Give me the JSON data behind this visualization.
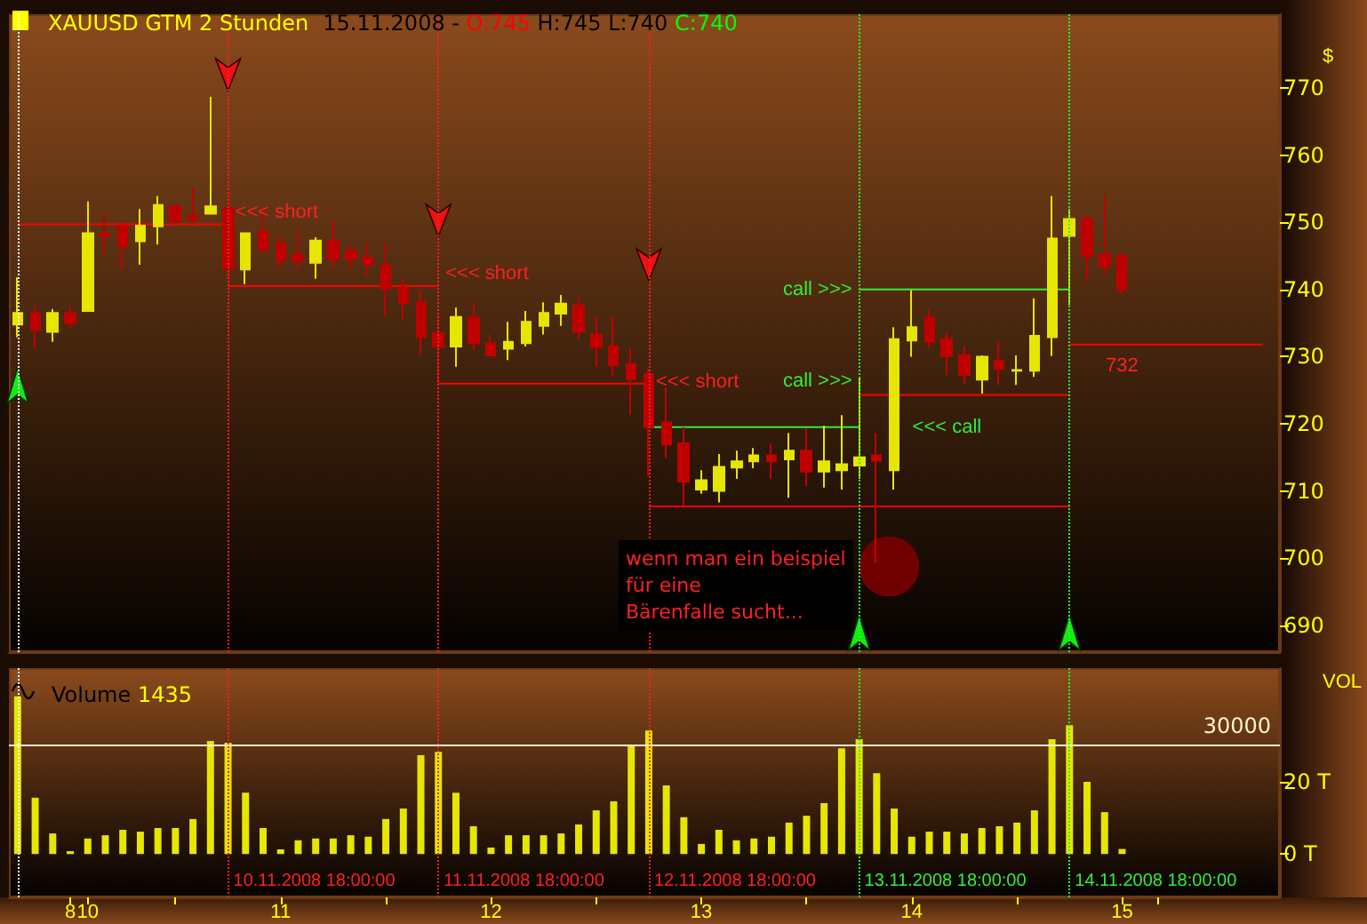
{
  "chart_data": [
    {
      "type": "candlestick",
      "title": "XAUUSD GTM 2 Stunden",
      "subtitle": "15.11.2008 - O:745 H:745 L:740 C:740",
      "ylabel": "$",
      "tick_labels": "y",
      "marker": "none",
      "xlim": [
        "2008-11-09T17:00",
        "2008-11-15T18:00"
      ],
      "ylim": [
        686,
        781
      ],
      "yticks": [
        690,
        700,
        710,
        720,
        730,
        740,
        750,
        760,
        770
      ],
      "x": [
        "2008-11-09T18:00",
        "2008-11-09T20:00",
        "2008-11-09T22:00",
        "2008-11-10T00:00",
        "2008-11-10T02:00",
        "2008-11-10T04:00",
        "2008-11-10T06:00",
        "2008-11-10T08:00",
        "2008-11-10T10:00",
        "2008-11-10T12:00",
        "2008-11-10T14:00",
        "2008-11-10T16:00",
        "2008-11-10T18:00",
        "2008-11-10T20:00",
        "2008-11-10T22:00",
        "2008-11-11T00:00",
        "2008-11-11T02:00",
        "2008-11-11T04:00",
        "2008-11-11T06:00",
        "2008-11-11T08:00",
        "2008-11-11T10:00",
        "2008-11-11T12:00",
        "2008-11-11T14:00",
        "2008-11-11T16:00",
        "2008-11-11T18:00",
        "2008-11-11T20:00",
        "2008-11-11T22:00",
        "2008-11-12T00:00",
        "2008-11-12T02:00",
        "2008-11-12T04:00",
        "2008-11-12T06:00",
        "2008-11-12T08:00",
        "2008-11-12T10:00",
        "2008-11-12T12:00",
        "2008-11-12T14:00",
        "2008-11-12T16:00",
        "2008-11-12T18:00",
        "2008-11-12T20:00",
        "2008-11-12T22:00",
        "2008-11-13T00:00",
        "2008-11-13T02:00",
        "2008-11-13T04:00",
        "2008-11-13T06:00",
        "2008-11-13T08:00",
        "2008-11-13T10:00",
        "2008-11-13T12:00",
        "2008-11-13T14:00",
        "2008-11-13T16:00",
        "2008-11-13T18:00",
        "2008-11-13T20:00",
        "2008-11-13T22:00",
        "2008-11-14T00:00",
        "2008-11-14T02:00",
        "2008-11-14T04:00",
        "2008-11-14T06:00",
        "2008-11-14T08:00",
        "2008-11-14T10:00",
        "2008-11-14T12:00",
        "2008-11-14T14:00",
        "2008-11-14T16:00",
        "2008-11-14T18:00",
        "2008-11-14T20:00",
        "2008-11-14T22:00",
        "2008-11-15T00:00"
      ],
      "ohlc": [
        [
          734.8,
          741.8,
          732.9,
          736.5
        ],
        [
          736.5,
          737.7,
          731.1,
          734.0
        ],
        [
          733.7,
          737.1,
          732.2,
          736.5
        ],
        [
          736.5,
          737.5,
          734.2,
          735.0
        ],
        [
          736.8,
          753.1,
          736.8,
          748.4
        ],
        [
          748.4,
          751.3,
          745.2,
          748.0
        ],
        [
          749.5,
          750.0,
          743.0,
          746.4
        ],
        [
          747.2,
          752.0,
          743.7,
          749.5
        ],
        [
          749.4,
          753.9,
          746.7,
          752.6
        ],
        [
          752.4,
          752.6,
          749.7,
          750.2
        ],
        [
          751.0,
          755.2,
          749.7,
          750.5
        ],
        [
          751.3,
          768.7,
          751.3,
          752.4
        ],
        [
          752.1,
          754.8,
          740.8,
          743.1
        ],
        [
          743.0,
          748.4,
          740.8,
          748.4
        ],
        [
          748.7,
          752.0,
          745.3,
          746.0
        ],
        [
          746.9,
          748.0,
          743.0,
          744.3
        ],
        [
          745.2,
          748.7,
          743.0,
          744.3
        ],
        [
          744.0,
          747.8,
          741.6,
          747.3
        ],
        [
          747.3,
          750.4,
          743.2,
          744.5
        ],
        [
          745.8,
          746.7,
          743.0,
          744.5
        ],
        [
          744.8,
          746.9,
          742.1,
          743.7
        ],
        [
          743.7,
          746.9,
          736.2,
          740.1
        ],
        [
          740.3,
          741.6,
          735.5,
          738.0
        ],
        [
          738.1,
          739.9,
          730.2,
          732.9
        ],
        [
          733.5,
          736.4,
          726.0,
          731.5
        ],
        [
          731.5,
          737.3,
          728.5,
          735.9
        ],
        [
          735.8,
          738.1,
          731.1,
          732.0
        ],
        [
          732.0,
          733.3,
          730.1,
          730.2
        ],
        [
          731.2,
          735.2,
          729.5,
          732.2
        ],
        [
          732.0,
          736.8,
          731.5,
          735.2
        ],
        [
          734.6,
          738.1,
          733.3,
          736.5
        ],
        [
          736.4,
          739.2,
          734.6,
          737.9
        ],
        [
          737.6,
          739.0,
          732.7,
          733.7
        ],
        [
          733.3,
          736.1,
          728.5,
          731.4
        ],
        [
          731.5,
          736.1,
          727.2,
          728.7
        ],
        [
          728.9,
          731.3,
          721.4,
          726.7
        ],
        [
          727.4,
          728.3,
          712.2,
          719.5
        ],
        [
          720.2,
          725.4,
          714.9,
          716.9
        ],
        [
          717.1,
          719.5,
          707.8,
          711.4
        ],
        [
          710.2,
          713.1,
          709.6,
          711.6
        ],
        [
          710.0,
          715.5,
          708.3,
          713.6
        ],
        [
          713.5,
          716.0,
          711.8,
          714.4
        ],
        [
          714.4,
          716.4,
          713.4,
          715.3
        ],
        [
          715.3,
          717.1,
          711.8,
          714.4
        ],
        [
          714.7,
          718.6,
          709.0,
          716.0
        ],
        [
          716.0,
          719.3,
          710.7,
          712.9
        ],
        [
          712.9,
          719.7,
          710.5,
          714.4
        ],
        [
          713.1,
          721.3,
          710.2,
          714.0
        ],
        [
          713.8,
          726.9,
          711.8,
          715.0
        ],
        [
          715.3,
          718.6,
          699.3,
          714.5
        ],
        [
          713.1,
          734.4,
          710.2,
          732.6
        ],
        [
          732.4,
          739.9,
          730.0,
          734.4
        ],
        [
          735.8,
          737.1,
          731.3,
          732.2
        ],
        [
          732.6,
          733.5,
          727.2,
          730.1
        ],
        [
          730.2,
          731.5,
          726.0,
          727.3
        ],
        [
          726.6,
          730.2,
          724.5,
          730.0
        ],
        [
          729.4,
          732.2,
          725.8,
          728.2
        ],
        [
          727.9,
          730.2,
          725.8,
          728.0
        ],
        [
          727.9,
          738.7,
          727.0,
          733.1
        ],
        [
          732.9,
          753.9,
          730.1,
          747.6
        ],
        [
          748.0,
          752.0,
          737.7,
          750.5
        ],
        [
          750.5,
          751.0,
          741.4,
          745.0
        ],
        [
          745.2,
          754.2,
          742.3,
          743.4
        ],
        [
          745,
          745.3,
          739.4,
          740
        ]
      ],
      "colors": [
        "#e6e600",
        "#c00000",
        "#e6e600",
        "#c00000",
        "#e6e600",
        "#c00000",
        "#c00000",
        "#e6e600",
        "#e6e600",
        "#c00000",
        "#c00000",
        "#e6e600",
        "#c00000",
        "#e6e600",
        "#c00000",
        "#c00000",
        "#c00000",
        "#e6e600",
        "#c00000",
        "#c00000",
        "#c00000",
        "#c00000",
        "#c00000",
        "#c00000",
        "#c00000",
        "#e6e600",
        "#c00000",
        "#c00000",
        "#e6e600",
        "#e6e600",
        "#e6e600",
        "#e6e600",
        "#c00000",
        "#c00000",
        "#c00000",
        "#c00000",
        "#c00000",
        "#c00000",
        "#c00000",
        "#e6e600",
        "#e6e600",
        "#e6e600",
        "#e6e600",
        "#c00000",
        "#e6e600",
        "#c00000",
        "#e6e600",
        "#e6e600",
        "#e6e600",
        "#c00000",
        "#e6e600",
        "#e6e600",
        "#c00000",
        "#c00000",
        "#c00000",
        "#e6e600",
        "#c00000",
        "#e6e600",
        "#e6e600",
        "#e6e600",
        "#e6e600",
        "#c00000",
        "#c00000",
        "#c00000"
      ],
      "series": [
        {
          "type": "line",
          "x": [
            "2008-11-09T18:00",
            "2008-11-10T18:00"
          ],
          "values": [
            749.7,
            749.7
          ],
          "color": "#ff0000"
        },
        {
          "type": "line",
          "x": [
            "2008-11-10T18:00",
            "2008-11-11T18:00"
          ],
          "values": [
            740.5,
            740.5
          ],
          "color": "#ff0000"
        },
        {
          "type": "line",
          "x": [
            "2008-11-11T18:00",
            "2008-11-12T18:00"
          ],
          "values": [
            726,
            726
          ],
          "color": "#ff0000"
        },
        {
          "type": "line",
          "x": [
            "2008-11-12T18:00",
            "2008-11-13T18:00"
          ],
          "values": [
            719.5,
            719.5
          ],
          "color": "#33ee33"
        },
        {
          "type": "line",
          "x": [
            "2008-11-12T18:00",
            "2008-11-14T18:00"
          ],
          "values": [
            707.7,
            707.7
          ],
          "color": "#ff0000"
        },
        {
          "type": "line",
          "x": [
            "2008-11-13T18:00",
            "2008-11-14T18:00"
          ],
          "values": [
            740,
            740
          ],
          "color": "#33ee33"
        },
        {
          "type": "line",
          "x": [
            "2008-11-13T18:00",
            "2008-11-14T18:00"
          ],
          "values": [
            724.3,
            724.3
          ],
          "color": "#ff0000"
        },
        {
          "type": "line",
          "x": [
            "2008-11-14T18:00",
            "2008-11-15T16:00"
          ],
          "values": [
            731.8,
            731.8
          ],
          "color": "#ff0000"
        }
      ],
      "ref_lines": [
        {
          "axis": "x",
          "value": "2008-11-09T18:00",
          "color": "#ffffff",
          "line_style": "dotted"
        },
        {
          "axis": "x",
          "value": "2008-11-10T18:00",
          "color": "#ff2020",
          "line_style": "dotted"
        },
        {
          "axis": "x",
          "value": "2008-11-11T18:00",
          "color": "#ff2020",
          "line_style": "dotted"
        },
        {
          "axis": "x",
          "value": "2008-11-12T18:00",
          "color": "#ff2020",
          "line_style": "dotted"
        },
        {
          "axis": "x",
          "value": "2008-11-13T18:00",
          "color": "#33ee33",
          "line_style": "dotted"
        },
        {
          "axis": "x",
          "value": "2008-11-14T18:00",
          "color": "#33ee33",
          "line_style": "dotted"
        }
      ],
      "annotations": [
        {
          "text": "<<< short",
          "x": "2008-11-10T18:00",
          "y": 749.7
        },
        {
          "text": "<<< short",
          "x": "2008-11-11T18:00",
          "y": 740.5
        },
        {
          "text": "<<< short",
          "x": "2008-11-12T18:00",
          "y": 726
        },
        {
          "text": "call >>>",
          "x": "2008-11-13T18:00",
          "y": 740
        },
        {
          "text": "call >>>",
          "x": "2008-11-13T18:00",
          "y": 724.3
        },
        {
          "text": "<<< call",
          "x": "2008-11-13T18:00",
          "y": 719.5
        },
        {
          "text": "732",
          "x": "2008-11-15T00:00",
          "y": 731.8
        },
        "wenn man ein beispiel\nfür eine\nBärenfalle sucht..."
      ]
    },
    {
      "type": "bar",
      "title": "Volume 1435",
      "ylabel": "VOL",
      "color": "#e6e600",
      "xlim": [
        "2008-11-09T17:00",
        "2008-11-15T18:00"
      ],
      "xticks": [
        {
          "value": "2008-11-10T00:00",
          "label": "8"
        },
        {
          "value": "2008-11-10T02:00",
          "label": "10"
        },
        {
          "value": "2008-11-10T12:00",
          "label": null
        },
        {
          "value": "2008-11-11T00:00",
          "label": "11"
        },
        {
          "value": "2008-11-11T12:00",
          "label": null
        },
        {
          "value": "2008-11-12T00:00",
          "label": "12"
        },
        {
          "value": "2008-11-12T12:00",
          "label": null
        },
        {
          "value": "2008-11-13T00:00",
          "label": "13"
        },
        {
          "value": "2008-11-13T12:00",
          "label": null
        },
        {
          "value": "2008-11-14T00:00",
          "label": "14"
        },
        {
          "value": "2008-11-14T12:00",
          "label": null
        },
        {
          "value": "2008-11-15T00:00",
          "label": "15"
        },
        {
          "value": "2008-11-15T04:00",
          "label": null
        }
      ],
      "ylim": [
        -12,
        51.5
      ],
      "yticks": [
        {
          "value": 0,
          "label": "0 T"
        },
        {
          "value": 20,
          "label": "20 T"
        }
      ],
      "x": [
        "2008-11-09T18:00",
        "2008-11-09T20:00",
        "2008-11-09T22:00",
        "2008-11-10T00:00",
        "2008-11-10T02:00",
        "2008-11-10T04:00",
        "2008-11-10T06:00",
        "2008-11-10T08:00",
        "2008-11-10T10:00",
        "2008-11-10T12:00",
        "2008-11-10T14:00",
        "2008-11-10T16:00",
        "2008-11-10T18:00",
        "2008-11-10T20:00",
        "2008-11-10T22:00",
        "2008-11-11T00:00",
        "2008-11-11T02:00",
        "2008-11-11T04:00",
        "2008-11-11T06:00",
        "2008-11-11T08:00",
        "2008-11-11T10:00",
        "2008-11-11T12:00",
        "2008-11-11T14:00",
        "2008-11-11T16:00",
        "2008-11-11T18:00",
        "2008-11-11T20:00",
        "2008-11-11T22:00",
        "2008-11-12T00:00",
        "2008-11-12T02:00",
        "2008-11-12T04:00",
        "2008-11-12T06:00",
        "2008-11-12T08:00",
        "2008-11-12T10:00",
        "2008-11-12T12:00",
        "2008-11-12T14:00",
        "2008-11-12T16:00",
        "2008-11-12T18:00",
        "2008-11-12T20:00",
        "2008-11-12T22:00",
        "2008-11-13T00:00",
        "2008-11-13T02:00",
        "2008-11-13T04:00",
        "2008-11-13T06:00",
        "2008-11-13T08:00",
        "2008-11-13T10:00",
        "2008-11-13T12:00",
        "2008-11-13T14:00",
        "2008-11-13T16:00",
        "2008-11-13T18:00",
        "2008-11-13T20:00",
        "2008-11-13T22:00",
        "2008-11-14T00:00",
        "2008-11-14T02:00",
        "2008-11-14T04:00",
        "2008-11-14T06:00",
        "2008-11-14T08:00",
        "2008-11-14T10:00",
        "2008-11-14T12:00",
        "2008-11-14T14:00",
        "2008-11-14T16:00",
        "2008-11-14T18:00",
        "2008-11-14T20:00",
        "2008-11-14T22:00",
        "2008-11-15T00:00"
      ],
      "values": [
        43.7,
        15.6,
        5.7,
        0.8,
        4.3,
        5.2,
        6.7,
        6.2,
        7.2,
        7.2,
        9.7,
        31.3,
        30.8,
        17,
        7.2,
        1.3,
        3.8,
        4.3,
        4.3,
        5.2,
        4.8,
        9.7,
        12.6,
        27.4,
        28.3,
        17,
        7.7,
        1.8,
        5.2,
        5.2,
        5.2,
        5.7,
        8.2,
        12.1,
        14.6,
        30,
        34.2,
        19,
        10.2,
        2.8,
        6.7,
        3.8,
        4.3,
        4.8,
        8.7,
        10.6,
        14.1,
        29.3,
        31.8,
        22.4,
        12.6,
        4.8,
        6.2,
        6.2,
        5.7,
        7.2,
        7.7,
        8.7,
        12.1,
        31.8,
        35.7,
        20,
        11.6,
        1.4
      ],
      "ref_lines": [
        {
          "axis": "x",
          "value": "2008-11-09T18:00",
          "color": "#ffffff",
          "line_style": "dotted"
        },
        {
          "axis": "x",
          "value": "2008-11-10T18:00",
          "label": "10.11.2008 18:00:00",
          "color": "#ff2020",
          "line_style": "dotted"
        },
        {
          "axis": "x",
          "value": "2008-11-11T18:00",
          "label": "11.11.2008 18:00:00",
          "color": "#ff2020",
          "line_style": "dotted"
        },
        {
          "axis": "x",
          "value": "2008-11-12T18:00",
          "label": "12.11.2008 18:00:00",
          "color": "#ff2020",
          "line_style": "dotted"
        },
        {
          "axis": "x",
          "value": "2008-11-13T18:00",
          "label": "13.11.2008 18:00:00",
          "color": "#33ee33",
          "line_style": "dotted"
        },
        {
          "axis": "x",
          "value": "2008-11-14T18:00",
          "label": "14.11.2008 18:00:00",
          "color": "#33ee33",
          "line_style": "dotted"
        },
        {
          "axis": "y",
          "value": 30,
          "label": "30000",
          "color": "#fff4d0",
          "line_style": "solid"
        }
      ]
    }
  ]
}
